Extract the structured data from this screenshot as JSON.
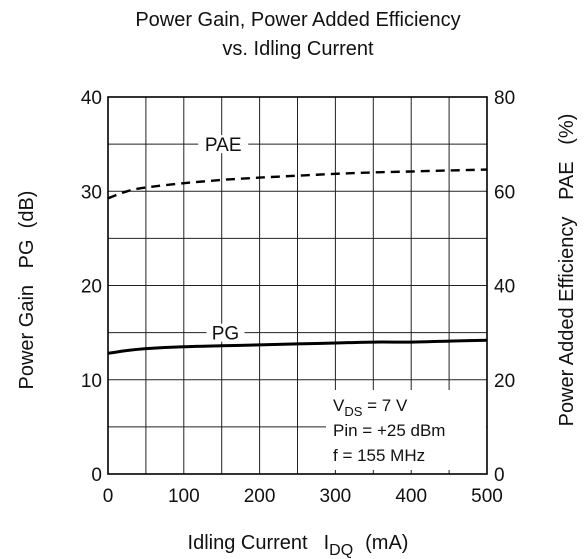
{
  "chart_data": {
    "type": "line",
    "title_line1": "Power Gain, Power Added Efficiency",
    "title_line2": "vs. Idling Current",
    "xlabel": "Idling Current",
    "xlabel_symbol": "I",
    "xlabel_subscript": "DQ",
    "xlabel_unit": "(mA)",
    "ylabel_left": "Power Gain   PG  (dB)",
    "ylabel_right": "Power Added Efficiency   PAE   (%)",
    "xlim": [
      0,
      500
    ],
    "ylim_left": [
      0,
      40
    ],
    "ylim_right": [
      0,
      80
    ],
    "x_ticks": [
      0,
      100,
      200,
      300,
      400,
      500
    ],
    "y_ticks_left": [
      0,
      10,
      20,
      30,
      40
    ],
    "y_ticks_right": [
      0,
      20,
      40,
      60,
      80
    ],
    "x_grid": [
      0,
      50,
      100,
      150,
      200,
      250,
      300,
      350,
      400,
      450,
      500
    ],
    "y_grid_left": [
      0,
      5,
      10,
      15,
      20,
      25,
      30,
      35,
      40
    ],
    "grid": true,
    "series": [
      {
        "name": "PAE",
        "axis": "right",
        "style": "dashed",
        "x": [
          0,
          25,
          50,
          100,
          150,
          200,
          250,
          300,
          350,
          400,
          450,
          500
        ],
        "values": [
          58.5,
          60.0,
          60.8,
          61.7,
          62.4,
          62.9,
          63.3,
          63.7,
          64.0,
          64.2,
          64.4,
          64.6
        ]
      },
      {
        "name": "PG",
        "axis": "left",
        "style": "solid",
        "x": [
          0,
          25,
          50,
          100,
          150,
          200,
          250,
          300,
          350,
          400,
          450,
          500
        ],
        "values": [
          12.8,
          13.1,
          13.3,
          13.5,
          13.6,
          13.7,
          13.8,
          13.9,
          14.0,
          14.0,
          14.1,
          14.2
        ]
      }
    ],
    "series_labels": [
      {
        "text": "PAE",
        "x": 152,
        "y": 35
      },
      {
        "text": "PG",
        "x": 155,
        "y": 15
      }
    ],
    "conditions": [
      {
        "main": "V",
        "sub": "DS",
        "rest": " = 7 V"
      },
      {
        "main": "Pin = +25 dBm",
        "sub": "",
        "rest": ""
      },
      {
        "main": "f = 155 MHz",
        "sub": "",
        "rest": ""
      }
    ]
  }
}
